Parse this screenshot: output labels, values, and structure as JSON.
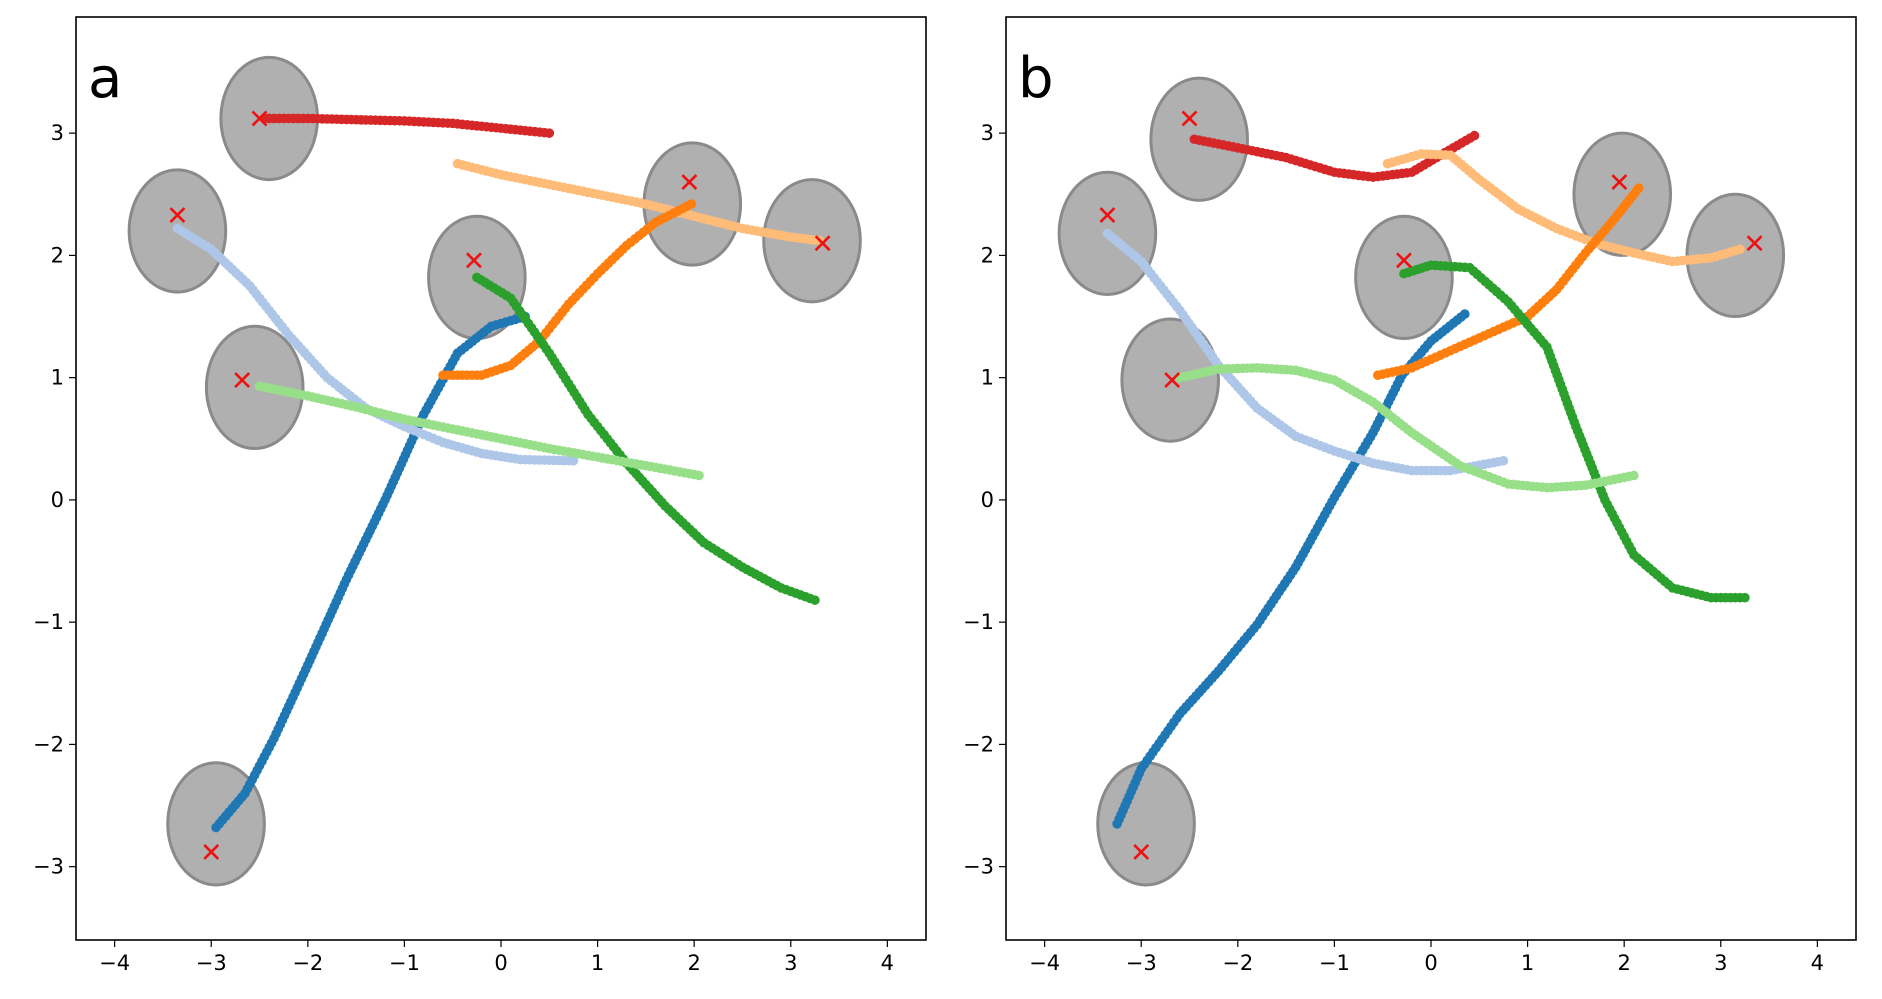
{
  "chart_data": [
    {
      "type": "scatter",
      "panel_label": "a",
      "xlim": [
        -4.4,
        4.4
      ],
      "ylim": [
        -3.6,
        3.95
      ],
      "xticks": [
        -4,
        -3,
        -2,
        -1,
        0,
        1,
        2,
        3,
        4
      ],
      "yticks": [
        -3,
        -2,
        -1,
        0,
        1,
        2,
        3
      ],
      "tick_labels_x": [
        "−4",
        "−3",
        "−2",
        "−1",
        "0",
        "1",
        "2",
        "3",
        "4"
      ],
      "tick_labels_y": [
        "−3",
        "−2",
        "−1",
        "0",
        "1",
        "2",
        "3"
      ],
      "obstacles": [
        {
          "center": [
            -2.4,
            3.12
          ],
          "radius": [
            0.5,
            0.5
          ]
        },
        {
          "center": [
            -3.35,
            2.2
          ],
          "radius": [
            0.5,
            0.5
          ]
        },
        {
          "center": [
            -2.55,
            0.92
          ],
          "radius": [
            0.5,
            0.5
          ]
        },
        {
          "center": [
            -0.25,
            1.82
          ],
          "radius": [
            0.5,
            0.5
          ]
        },
        {
          "center": [
            1.98,
            2.42
          ],
          "radius": [
            0.5,
            0.5
          ]
        },
        {
          "center": [
            3.22,
            2.12
          ],
          "radius": [
            0.5,
            0.5
          ]
        },
        {
          "center": [
            -2.95,
            -2.65
          ],
          "radius": [
            0.5,
            0.5
          ]
        }
      ],
      "goals": [
        [
          -2.5,
          3.12
        ],
        [
          -3.35,
          2.33
        ],
        [
          -2.68,
          0.98
        ],
        [
          -0.28,
          1.96
        ],
        [
          1.95,
          2.6
        ],
        [
          3.33,
          2.1
        ],
        [
          -3.0,
          -2.88
        ]
      ],
      "series": [
        {
          "name": "blue",
          "color": "#1f77b4",
          "points": [
            [
              -2.95,
              -2.68
            ],
            [
              -2.65,
              -2.4
            ],
            [
              -2.35,
              -1.95
            ],
            [
              -2.0,
              -1.35
            ],
            [
              -1.6,
              -0.65
            ],
            [
              -1.2,
              0.0
            ],
            [
              -0.8,
              0.7
            ],
            [
              -0.45,
              1.2
            ],
            [
              -0.1,
              1.42
            ],
            [
              0.25,
              1.5
            ]
          ]
        },
        {
          "name": "light-blue",
          "color": "#aec7e8",
          "points": [
            [
              -3.35,
              2.22
            ],
            [
              -3.0,
              2.05
            ],
            [
              -2.6,
              1.75
            ],
            [
              -2.2,
              1.35
            ],
            [
              -1.8,
              1.0
            ],
            [
              -1.4,
              0.75
            ],
            [
              -1.0,
              0.6
            ],
            [
              -0.6,
              0.47
            ],
            [
              -0.2,
              0.38
            ],
            [
              0.2,
              0.33
            ],
            [
              0.75,
              0.32
            ]
          ]
        },
        {
          "name": "red",
          "color": "#d62728",
          "points": [
            [
              -2.45,
              3.12
            ],
            [
              -2.0,
              3.12
            ],
            [
              -1.5,
              3.11
            ],
            [
              -1.0,
              3.1
            ],
            [
              -0.5,
              3.08
            ],
            [
              0.0,
              3.04
            ],
            [
              0.5,
              3.0
            ]
          ]
        },
        {
          "name": "light-orange",
          "color": "#ffbb78",
          "points": [
            [
              -0.45,
              2.75
            ],
            [
              0.0,
              2.66
            ],
            [
              0.5,
              2.58
            ],
            [
              1.0,
              2.5
            ],
            [
              1.5,
              2.42
            ],
            [
              2.0,
              2.32
            ],
            [
              2.5,
              2.22
            ],
            [
              3.0,
              2.15
            ],
            [
              3.3,
              2.12
            ]
          ]
        },
        {
          "name": "orange",
          "color": "#ff7f0e",
          "points": [
            [
              -0.6,
              1.02
            ],
            [
              -0.2,
              1.02
            ],
            [
              0.1,
              1.1
            ],
            [
              0.4,
              1.3
            ],
            [
              0.7,
              1.6
            ],
            [
              1.0,
              1.85
            ],
            [
              1.3,
              2.08
            ],
            [
              1.6,
              2.27
            ],
            [
              1.97,
              2.42
            ]
          ]
        },
        {
          "name": "green",
          "color": "#2ca02c",
          "points": [
            [
              -0.25,
              1.82
            ],
            [
              0.1,
              1.65
            ],
            [
              0.5,
              1.2
            ],
            [
              0.9,
              0.7
            ],
            [
              1.3,
              0.3
            ],
            [
              1.7,
              -0.05
            ],
            [
              2.1,
              -0.35
            ],
            [
              2.5,
              -0.55
            ],
            [
              2.9,
              -0.72
            ],
            [
              3.25,
              -0.82
            ]
          ]
        },
        {
          "name": "light-green",
          "color": "#98df8a",
          "points": [
            [
              -2.5,
              0.93
            ],
            [
              -2.0,
              0.85
            ],
            [
              -1.5,
              0.76
            ],
            [
              -1.0,
              0.66
            ],
            [
              -0.5,
              0.58
            ],
            [
              0.0,
              0.5
            ],
            [
              0.5,
              0.42
            ],
            [
              1.0,
              0.35
            ],
            [
              1.5,
              0.28
            ],
            [
              2.05,
              0.2
            ]
          ]
        }
      ]
    },
    {
      "type": "scatter",
      "panel_label": "b",
      "xlim": [
        -4.4,
        4.4
      ],
      "ylim": [
        -3.6,
        3.95
      ],
      "xticks": [
        -4,
        -3,
        -2,
        -1,
        0,
        1,
        2,
        3,
        4
      ],
      "yticks": [
        -3,
        -2,
        -1,
        0,
        1,
        2,
        3
      ],
      "tick_labels_x": [
        "−4",
        "−3",
        "−2",
        "−1",
        "0",
        "1",
        "2",
        "3",
        "4"
      ],
      "tick_labels_y": [
        "−3",
        "−2",
        "−1",
        "0",
        "1",
        "2",
        "3"
      ],
      "obstacles": [
        {
          "center": [
            -2.4,
            2.95
          ],
          "radius": [
            0.5,
            0.5
          ]
        },
        {
          "center": [
            -3.35,
            2.18
          ],
          "radius": [
            0.5,
            0.5
          ]
        },
        {
          "center": [
            -2.7,
            0.98
          ],
          "radius": [
            0.5,
            0.5
          ]
        },
        {
          "center": [
            -0.28,
            1.82
          ],
          "radius": [
            0.5,
            0.5
          ]
        },
        {
          "center": [
            1.98,
            2.5
          ],
          "radius": [
            0.5,
            0.5
          ]
        },
        {
          "center": [
            3.15,
            2.0
          ],
          "radius": [
            0.5,
            0.5
          ]
        },
        {
          "center": [
            -2.95,
            -2.65
          ],
          "radius": [
            0.5,
            0.5
          ]
        }
      ],
      "goals": [
        [
          -2.5,
          3.12
        ],
        [
          -3.35,
          2.33
        ],
        [
          -2.68,
          0.98
        ],
        [
          -0.28,
          1.96
        ],
        [
          1.95,
          2.6
        ],
        [
          3.35,
          2.1
        ],
        [
          -3.0,
          -2.88
        ]
      ],
      "series": [
        {
          "name": "blue",
          "color": "#1f77b4",
          "points": [
            [
              -3.25,
              -2.65
            ],
            [
              -3.0,
              -2.2
            ],
            [
              -2.6,
              -1.75
            ],
            [
              -2.2,
              -1.4
            ],
            [
              -1.8,
              -1.02
            ],
            [
              -1.4,
              -0.55
            ],
            [
              -1.0,
              0.02
            ],
            [
              -0.6,
              0.55
            ],
            [
              -0.3,
              1.02
            ],
            [
              0.0,
              1.3
            ],
            [
              0.35,
              1.52
            ]
          ]
        },
        {
          "name": "light-blue",
          "color": "#aec7e8",
          "points": [
            [
              -3.35,
              2.18
            ],
            [
              -3.0,
              1.95
            ],
            [
              -2.6,
              1.55
            ],
            [
              -2.2,
              1.1
            ],
            [
              -1.8,
              0.75
            ],
            [
              -1.4,
              0.52
            ],
            [
              -1.0,
              0.4
            ],
            [
              -0.6,
              0.3
            ],
            [
              -0.2,
              0.24
            ],
            [
              0.2,
              0.24
            ],
            [
              0.75,
              0.32
            ]
          ]
        },
        {
          "name": "red",
          "color": "#d62728",
          "points": [
            [
              -2.45,
              2.95
            ],
            [
              -2.0,
              2.88
            ],
            [
              -1.5,
              2.8
            ],
            [
              -1.0,
              2.68
            ],
            [
              -0.6,
              2.64
            ],
            [
              -0.2,
              2.68
            ],
            [
              0.1,
              2.82
            ],
            [
              0.45,
              2.98
            ]
          ]
        },
        {
          "name": "light-orange",
          "color": "#ffbb78",
          "points": [
            [
              -0.45,
              2.75
            ],
            [
              -0.1,
              2.83
            ],
            [
              0.2,
              2.82
            ],
            [
              0.5,
              2.62
            ],
            [
              0.9,
              2.38
            ],
            [
              1.3,
              2.22
            ],
            [
              1.7,
              2.1
            ],
            [
              2.1,
              2.02
            ],
            [
              2.5,
              1.95
            ],
            [
              2.9,
              1.98
            ],
            [
              3.2,
              2.05
            ]
          ]
        },
        {
          "name": "orange",
          "color": "#ff7f0e",
          "points": [
            [
              -0.55,
              1.02
            ],
            [
              -0.2,
              1.08
            ],
            [
              0.2,
              1.22
            ],
            [
              0.6,
              1.36
            ],
            [
              1.0,
              1.5
            ],
            [
              1.3,
              1.72
            ],
            [
              1.6,
              2.02
            ],
            [
              1.9,
              2.3
            ],
            [
              2.15,
              2.55
            ]
          ]
        },
        {
          "name": "green",
          "color": "#2ca02c",
          "points": [
            [
              -0.28,
              1.85
            ],
            [
              0.0,
              1.92
            ],
            [
              0.4,
              1.9
            ],
            [
              0.8,
              1.62
            ],
            [
              1.2,
              1.25
            ],
            [
              1.5,
              0.6
            ],
            [
              1.8,
              0.0
            ],
            [
              2.1,
              -0.45
            ],
            [
              2.5,
              -0.72
            ],
            [
              2.9,
              -0.8
            ],
            [
              3.25,
              -0.8
            ]
          ]
        },
        {
          "name": "light-green",
          "color": "#98df8a",
          "points": [
            [
              -2.6,
              1.0
            ],
            [
              -2.2,
              1.07
            ],
            [
              -1.8,
              1.08
            ],
            [
              -1.4,
              1.06
            ],
            [
              -1.0,
              0.98
            ],
            [
              -0.6,
              0.8
            ],
            [
              -0.2,
              0.55
            ],
            [
              0.3,
              0.28
            ],
            [
              0.8,
              0.13
            ],
            [
              1.2,
              0.1
            ],
            [
              1.6,
              0.12
            ],
            [
              2.1,
              0.2
            ]
          ]
        }
      ]
    }
  ]
}
